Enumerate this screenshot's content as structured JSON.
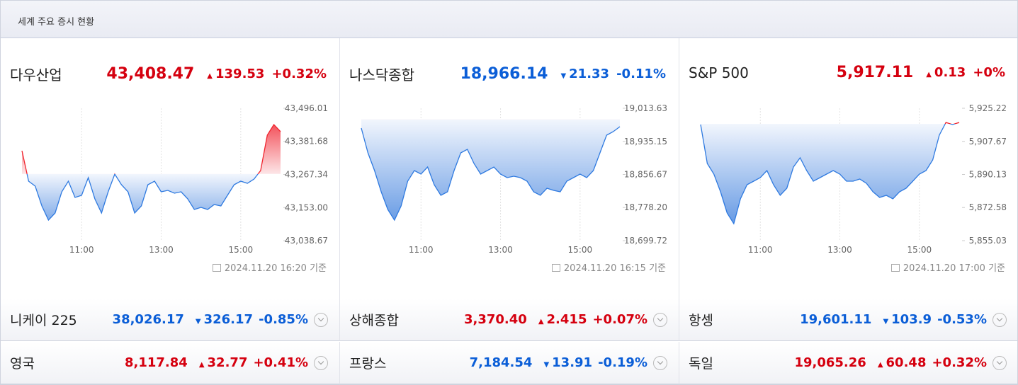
{
  "header": {
    "title": "세계 주요 증시 현황"
  },
  "panels": [
    {
      "name": "다우산업",
      "price": "43,408.47",
      "direction": "up",
      "change": "139.53",
      "change_pct": "+0.32%",
      "timestamp": "2024.11.20 16:20 기준",
      "chart": {
        "type": "line",
        "xlim": [
          "09:30",
          "16:00"
        ],
        "xticks": [
          "11:00",
          "13:00",
          "15:00"
        ],
        "ylim": [
          43038.67,
          43496.01
        ],
        "yticks": [
          {
            "value": 43496.01,
            "label": "43,496.01"
          },
          {
            "value": 43381.68,
            "label": "43,381.68"
          },
          {
            "value": 43267.34,
            "label": "43,267.34"
          },
          {
            "value": 43153.0,
            "label": "43,153.00"
          },
          {
            "value": 43038.67,
            "label": "43,038.67"
          }
        ],
        "x": [
          "09:30",
          "09:40",
          "09:50",
          "10:00",
          "10:10",
          "10:20",
          "10:30",
          "10:40",
          "10:50",
          "11:00",
          "11:10",
          "11:20",
          "11:30",
          "11:40",
          "11:50",
          "12:00",
          "12:10",
          "12:20",
          "12:30",
          "12:40",
          "12:50",
          "13:00",
          "13:10",
          "13:20",
          "13:30",
          "13:40",
          "13:50",
          "14:00",
          "14:10",
          "14:20",
          "14:30",
          "14:40",
          "14:50",
          "15:00",
          "15:10",
          "15:20",
          "15:30",
          "15:40",
          "15:50",
          "16:00"
        ],
        "values": [
          43349.3,
          43244.1,
          43227.0,
          43158.5,
          43109.6,
          43134.0,
          43207.4,
          43244.1,
          43187.8,
          43195.2,
          43256.3,
          43183.0,
          43134.0,
          43207.4,
          43268.5,
          43231.9,
          43207.4,
          43134.0,
          43158.5,
          43231.9,
          43244.1,
          43207.4,
          43212.3,
          43202.5,
          43207.4,
          43183.0,
          43146.3,
          43153.6,
          43146.3,
          43163.4,
          43158.5,
          43195.2,
          43231.9,
          43244.1,
          43236.8,
          43251.4,
          43280.8,
          43403.1,
          43439.7,
          43415.3
        ]
      }
    },
    {
      "name": "나스닥종합",
      "price": "18,966.14",
      "direction": "down",
      "change": "21.33",
      "change_pct": "-0.11%",
      "timestamp": "2024.11.20 16:15 기준",
      "chart": {
        "type": "line",
        "xlim": [
          "09:30",
          "16:00"
        ],
        "xticks": [
          "11:00",
          "13:00",
          "15:00"
        ],
        "ylim": [
          18699.72,
          19013.63
        ],
        "yticks": [
          {
            "value": 19013.63,
            "label": "19,013.63"
          },
          {
            "value": 18935.15,
            "label": "18,935.15"
          },
          {
            "value": 18856.67,
            "label": "18,856.67"
          },
          {
            "value": 18778.2,
            "label": "18,778.20"
          },
          {
            "value": 18699.72,
            "label": "18,699.72"
          }
        ],
        "x": [
          "09:30",
          "09:40",
          "09:50",
          "10:00",
          "10:10",
          "10:20",
          "10:30",
          "10:40",
          "10:50",
          "11:00",
          "11:10",
          "11:20",
          "11:30",
          "11:40",
          "11:50",
          "12:00",
          "12:10",
          "12:20",
          "12:30",
          "12:40",
          "12:50",
          "13:00",
          "13:10",
          "13:20",
          "13:30",
          "13:40",
          "13:50",
          "14:00",
          "14:10",
          "14:20",
          "14:30",
          "14:40",
          "14:50",
          "15:00",
          "15:10",
          "15:20",
          "15:30",
          "15:40",
          "15:50",
          "16:00"
        ],
        "values": [
          18966.6,
          18907.8,
          18865.9,
          18815.5,
          18773.5,
          18748.4,
          18781.9,
          18840.7,
          18865.9,
          18857.5,
          18874.3,
          18832.3,
          18807.1,
          18815.5,
          18865.9,
          18907.8,
          18916.2,
          18882.7,
          18857.5,
          18865.9,
          18874.3,
          18857.5,
          18849.1,
          18852.4,
          18849.1,
          18840.7,
          18815.5,
          18807.1,
          18823.9,
          18818.9,
          18815.5,
          18840.7,
          18849.1,
          18857.5,
          18849.1,
          18865.9,
          18907.8,
          18949.8,
          18958.2,
          18970.0
        ]
      }
    },
    {
      "name": "S&P 500",
      "price": "5,917.11",
      "direction": "up",
      "change": "0.13",
      "change_pct": "+0%",
      "timestamp": "2024.11.20 17:00 기준",
      "chart": {
        "type": "line",
        "xlim": [
          "09:30",
          "16:00"
        ],
        "xticks": [
          "11:00",
          "13:00",
          "15:00"
        ],
        "ylim": [
          5855.03,
          5925.22
        ],
        "yticks": [
          {
            "value": 5925.22,
            "label": "5,925.22"
          },
          {
            "value": 5907.67,
            "label": "5,907.67"
          },
          {
            "value": 5890.13,
            "label": "5,890.13"
          },
          {
            "value": 5872.58,
            "label": "5,872.58"
          },
          {
            "value": 5855.03,
            "label": "5,855.03"
          }
        ],
        "x": [
          "09:30",
          "09:40",
          "09:50",
          "10:00",
          "10:10",
          "10:20",
          "10:30",
          "10:40",
          "10:50",
          "11:00",
          "11:10",
          "11:20",
          "11:30",
          "11:40",
          "11:50",
          "12:00",
          "12:10",
          "12:20",
          "12:30",
          "12:40",
          "12:50",
          "13:00",
          "13:10",
          "13:20",
          "13:30",
          "13:40",
          "13:50",
          "14:00",
          "14:10",
          "14:20",
          "14:30",
          "14:40",
          "14:50",
          "15:00",
          "15:10",
          "15:20",
          "15:30",
          "15:40",
          "15:50",
          "16:00"
        ],
        "values": [
          5916.59,
          5895.94,
          5890.31,
          5880.93,
          5869.67,
          5864.04,
          5877.18,
          5884.68,
          5886.56,
          5888.44,
          5892.19,
          5884.68,
          5879.05,
          5882.81,
          5894.07,
          5898.95,
          5892.19,
          5886.56,
          5888.44,
          5890.31,
          5892.19,
          5890.31,
          5886.56,
          5886.56,
          5887.68,
          5885.43,
          5880.93,
          5877.93,
          5879.05,
          5877.18,
          5880.93,
          5882.81,
          5886.56,
          5890.31,
          5892.19,
          5897.82,
          5910.96,
          5917.71,
          5916.59,
          5917.71
        ]
      }
    }
  ],
  "rows": [
    {
      "name": "니케이 225",
      "price": "38,026.17",
      "direction": "down",
      "change": "326.17",
      "change_pct": "-0.85%"
    },
    {
      "name": "상해종합",
      "price": "3,370.40",
      "direction": "up",
      "change": "2.415",
      "change_pct": "+0.07%"
    },
    {
      "name": "항셍",
      "price": "19,601.11",
      "direction": "down",
      "change": "103.9",
      "change_pct": "-0.53%"
    },
    {
      "name": "영국",
      "price": "8,117.84",
      "direction": "up",
      "change": "32.77",
      "change_pct": "+0.41%"
    },
    {
      "name": "프랑스",
      "price": "7,184.54",
      "direction": "down",
      "change": "13.91",
      "change_pct": "-0.19%"
    },
    {
      "name": "독일",
      "price": "19,065.26",
      "direction": "up",
      "change": "60.48",
      "change_pct": "+0.32%"
    }
  ]
}
